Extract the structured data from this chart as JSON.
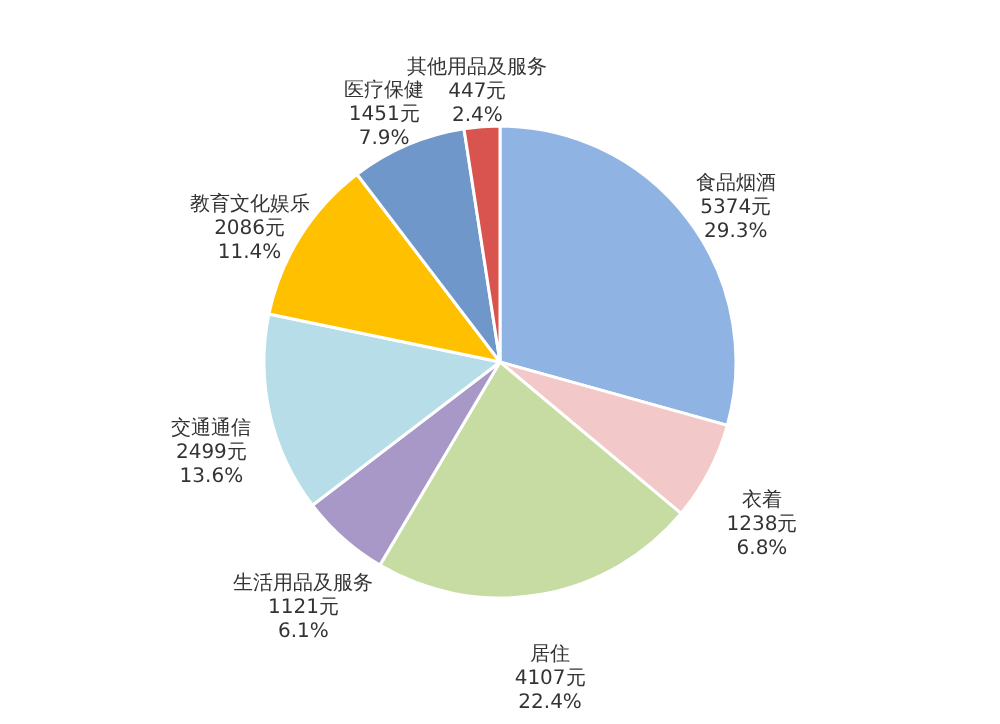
{
  "chart_data": {
    "type": "pie",
    "categories": [
      "食品烟酒",
      "衣着",
      "居住",
      "生活用品及服务",
      "交通通信",
      "教育文化娱乐",
      "医疗保健",
      "其他用品及服务"
    ],
    "values": [
      5374,
      1238,
      4107,
      1121,
      2499,
      2086,
      1451,
      447
    ],
    "colors": [
      "#8fb4e3",
      "#f2c8c8",
      "#c6dca2",
      "#a898c8",
      "#b7dee8",
      "#ffc000",
      "#6f97c9",
      "#d9534f"
    ],
    "value_labels": [
      "5374元\n29.3%",
      "1238元\n6.8%",
      "4107元\n22.4%",
      "1121元\n6.1%",
      "2499元\n13.6%",
      "2086元\n11.4%",
      "1451元\n7.9%",
      "447元\n2.4%"
    ],
    "legend": false
  }
}
